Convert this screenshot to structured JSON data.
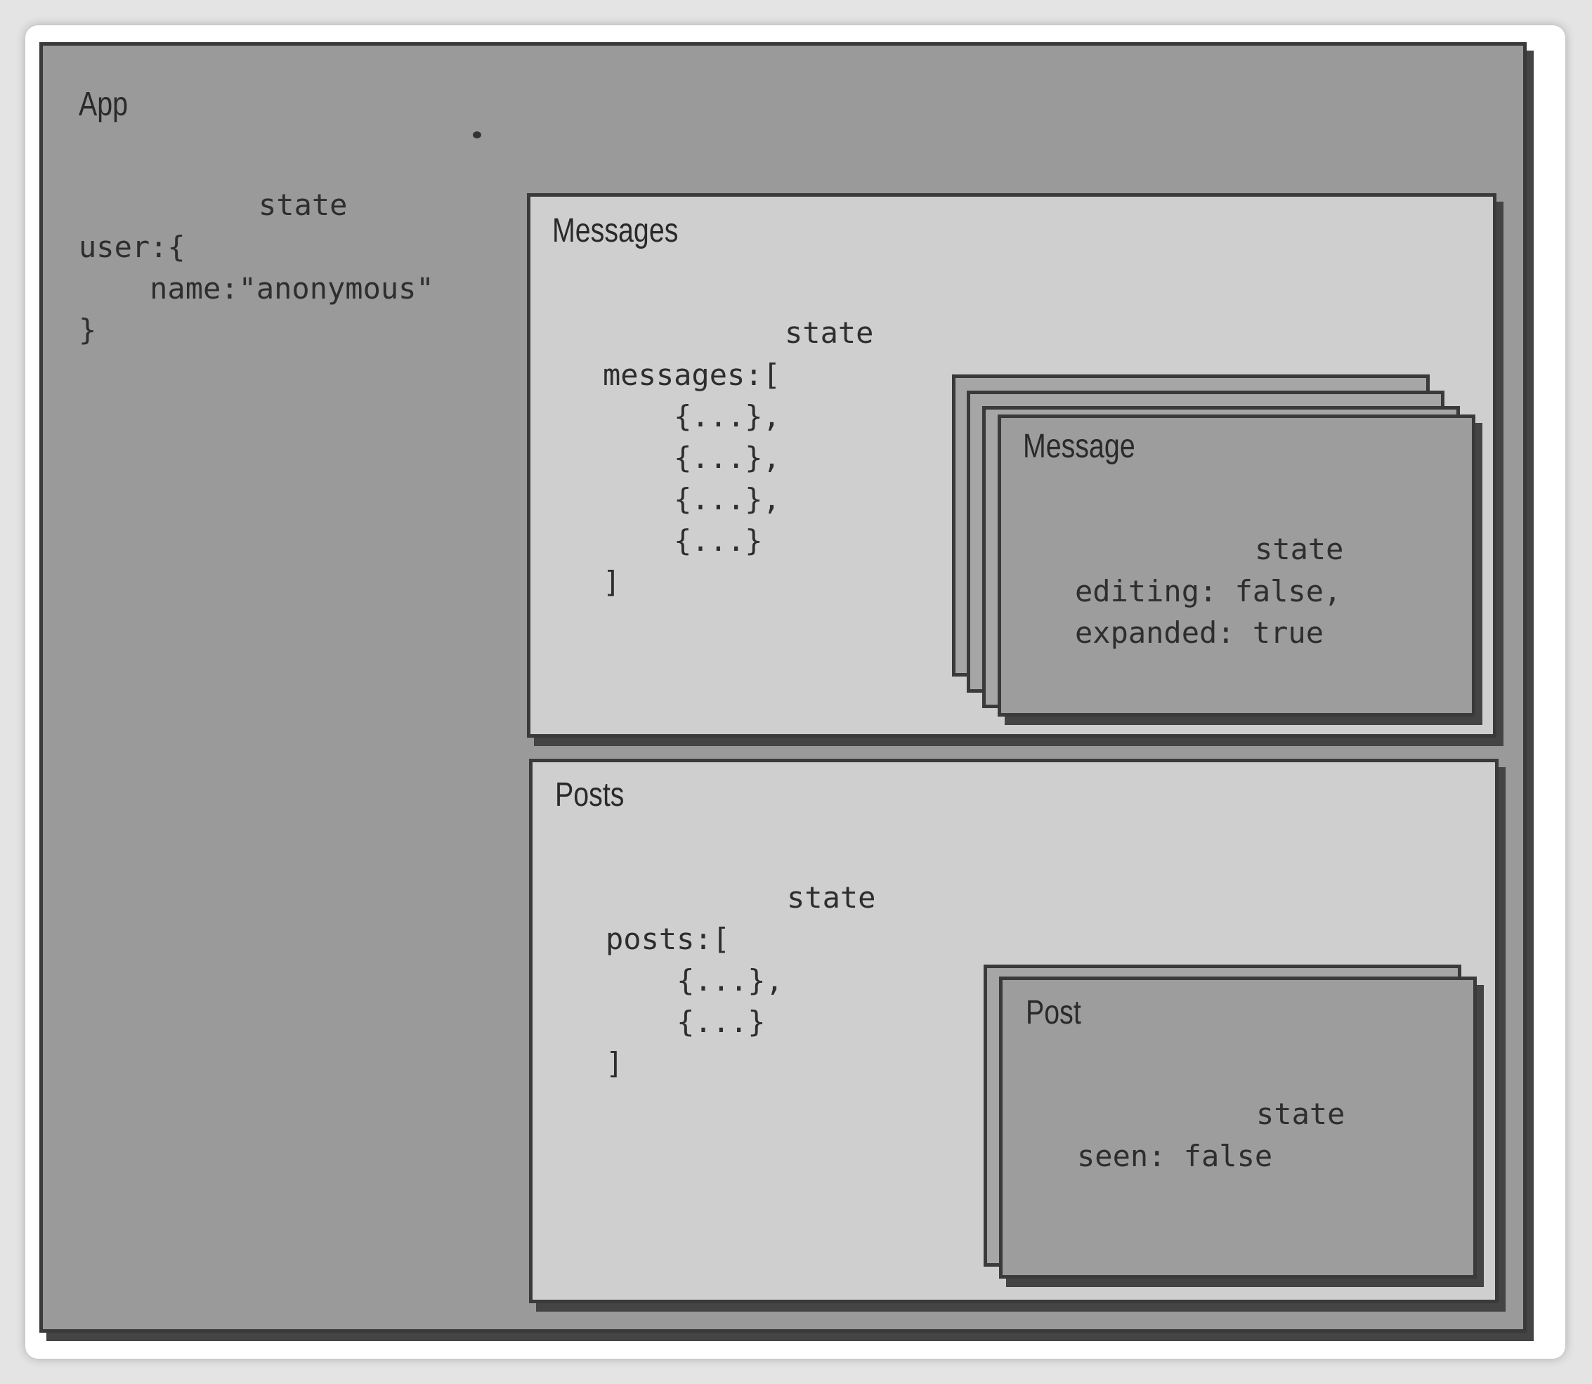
{
  "app": {
    "title": "App",
    "state_label": "state",
    "state_code": "user:{\n    name:\"anonymous\"\n}"
  },
  "messages": {
    "title": "Messages",
    "state_label": "state",
    "state_code": "messages:[\n    {...},\n    {...},\n    {...},\n    {...}\n]"
  },
  "message": {
    "title": "Message",
    "state_label": "state",
    "state_code": "editing: false,\nexpanded: true"
  },
  "posts": {
    "title": "Posts",
    "state_label": "state",
    "state_code": "posts:[\n    {...},\n    {...}\n]"
  },
  "post": {
    "title": "Post",
    "state_label": "state",
    "state_code": "seen: false"
  }
}
